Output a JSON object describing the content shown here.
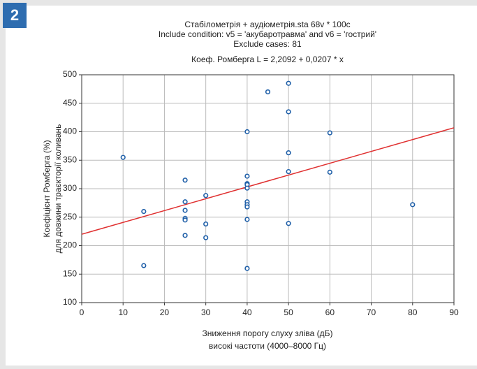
{
  "badge": "2",
  "chart_data": {
    "type": "scatter",
    "title": "Стабілометрія + аудіометрія.sta 68v * 100c",
    "subtitle": [
      "Include condition: v5 = 'акубаротравма' and v6 = 'гострий'",
      "Exclude cases: 81",
      "Коеф. Ромберга L = 2,2092 + 0,0207 * x"
    ],
    "x_label": [
      "Зниження порогу слуху зліва (дБ)",
      "високі частоти (4000–8000 Гц)"
    ],
    "y_label": [
      "Коефіцієнт Ромберга (%)",
      "для довжини траєкторії коливань"
    ],
    "xlim": [
      0,
      90
    ],
    "ylim": [
      100,
      500
    ],
    "xticks": [
      0,
      10,
      20,
      30,
      40,
      50,
      60,
      70,
      80,
      90
    ],
    "yticks": [
      100,
      150,
      200,
      250,
      300,
      350,
      400,
      450,
      500
    ],
    "grid": true,
    "series": [
      {
        "color": "#1f5fa8",
        "x": [
          10,
          15,
          15,
          25,
          25,
          25,
          25,
          25,
          25,
          30,
          30,
          30,
          40,
          40,
          40,
          40,
          40,
          40,
          40,
          40,
          40,
          40,
          45,
          50,
          50,
          50,
          50,
          50,
          60,
          60,
          80
        ],
        "values": [
          355,
          260,
          165,
          315,
          277,
          262,
          248,
          245,
          218,
          288,
          238,
          214,
          400,
          322,
          309,
          307,
          301,
          277,
          272,
          268,
          246,
          160,
          470,
          485,
          435,
          363,
          330,
          239,
          398,
          329,
          272
        ]
      }
    ],
    "fit": {
      "color": "#e03030",
      "x": [
        0,
        90
      ],
      "values": [
        220,
        407
      ]
    }
  }
}
